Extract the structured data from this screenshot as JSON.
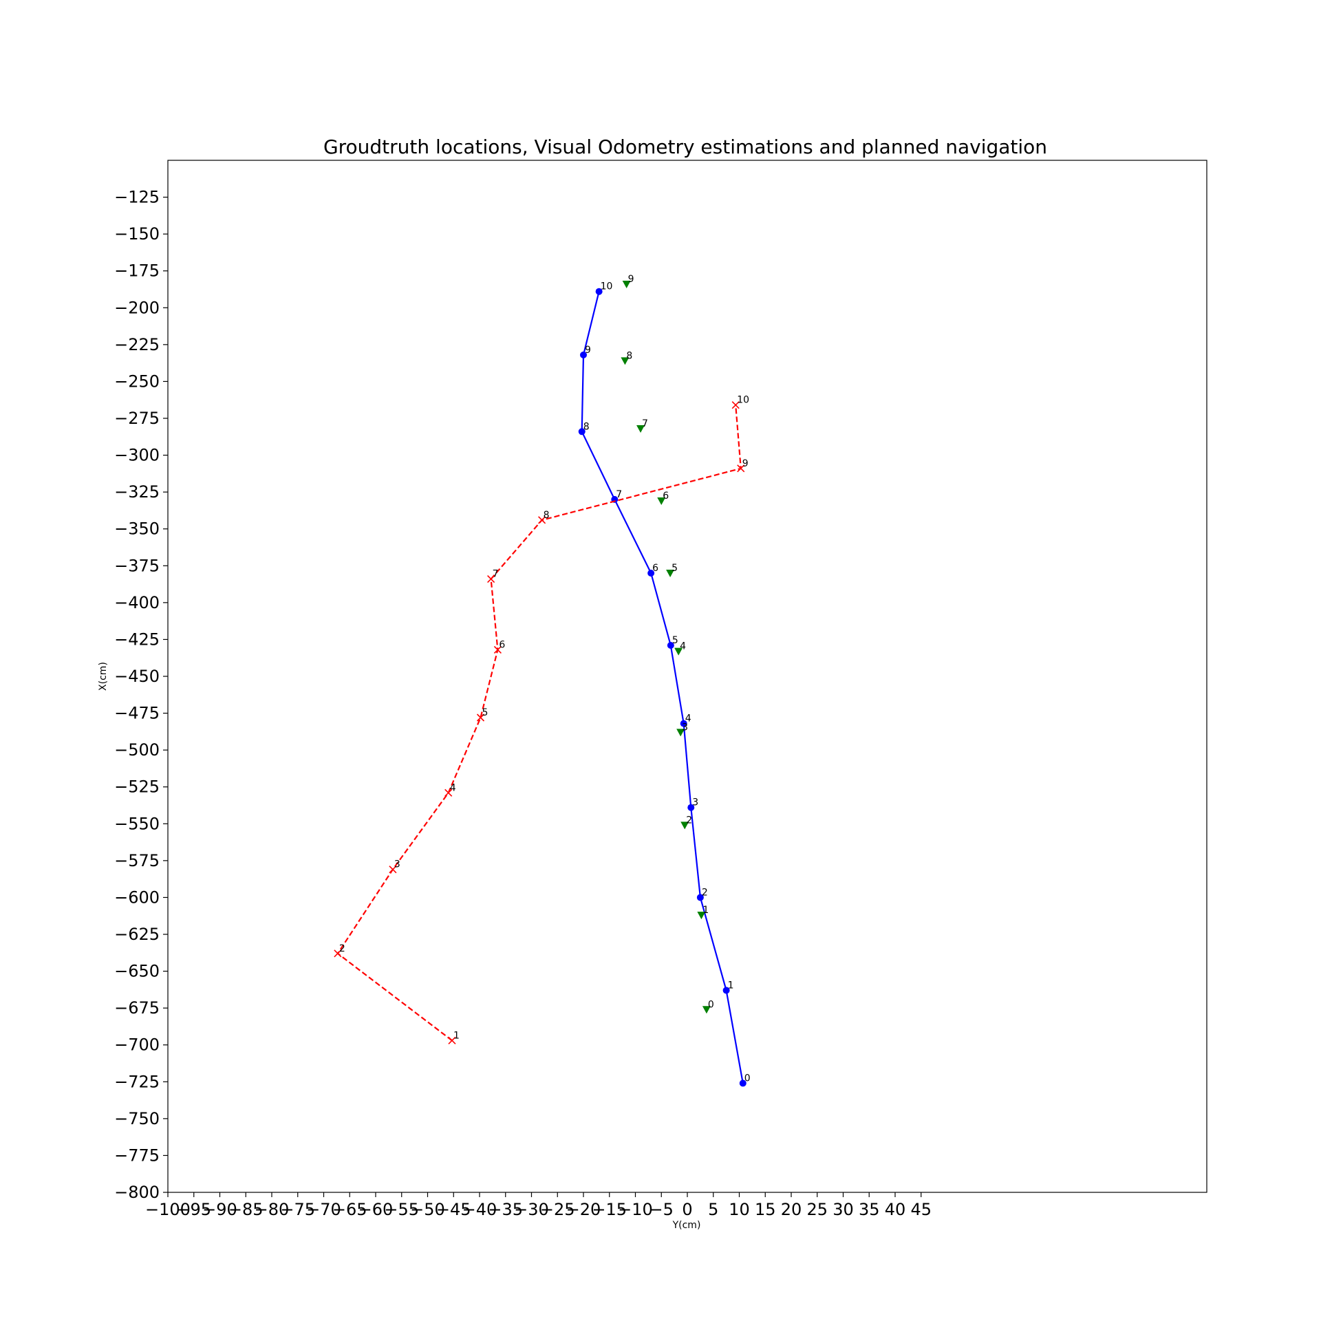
{
  "chart_data": {
    "type": "scatter",
    "title": "Groudtruth locations, Visual Odometry estimations and planned navigation",
    "xlabel": "Y(cm)",
    "ylabel": "X(cm)",
    "xlim": [
      -100,
      100
    ],
    "ylim": [
      -800,
      -100
    ],
    "grid": false,
    "x_ticks": [
      -100,
      -95,
      -90,
      -85,
      -80,
      -75,
      -70,
      -65,
      -60,
      -55,
      -50,
      -45,
      -40,
      -35,
      -30,
      -25,
      -20,
      -15,
      -10,
      -5,
      0,
      5,
      10,
      15,
      20,
      25,
      30,
      35,
      40,
      45
    ],
    "x_tick_labels": [
      "−100",
      "−95",
      "−90",
      "−85",
      "−80",
      "−75",
      "−70",
      "−65",
      "−60",
      "−55",
      "−50",
      "−45",
      "−40",
      "−35",
      "−30",
      "−25",
      "−20",
      "−15",
      "−10",
      "−5",
      "0",
      "5",
      "10",
      "15",
      "20",
      "25",
      "30",
      "35",
      "40",
      "45"
    ],
    "y_ticks": [
      -125,
      -150,
      -175,
      -200,
      -225,
      -250,
      -275,
      -300,
      -325,
      -350,
      -375,
      -400,
      -425,
      -450,
      -475,
      -500,
      -525,
      -550,
      -575,
      -600,
      -625,
      -650,
      -675,
      -700,
      -725,
      -750,
      -775,
      -800
    ],
    "y_tick_labels": [
      "−125",
      "−150",
      "−175",
      "−200",
      "−225",
      "−250",
      "−275",
      "−300",
      "−325",
      "−350",
      "−375",
      "−400",
      "−425",
      "−450",
      "−475",
      "−500",
      "−525",
      "−550",
      "−575",
      "−600",
      "−625",
      "−650",
      "−675",
      "−700",
      "−725",
      "−750",
      "−775",
      "−800"
    ],
    "series": [
      {
        "style": "solid-line-circle",
        "color": "#0000ff",
        "x": [
          10.7,
          7.5,
          2.5,
          0.7,
          -0.7,
          -3.2,
          -7.0,
          -14.0,
          -20.3,
          -20.0,
          -17.0
        ],
        "y": [
          -726,
          -663,
          -600,
          -539,
          -482,
          -429,
          -380,
          -330,
          -284,
          -232,
          -189
        ],
        "labels": [
          "0",
          "1",
          "2",
          "3",
          "4",
          "5",
          "6",
          "7",
          "8",
          "9",
          "10"
        ]
      },
      {
        "style": "dashed-line-x",
        "color": "#ff0000",
        "x": [
          -45.3,
          -67.3,
          -56.7,
          -46.0,
          -39.8,
          -36.5,
          -37.8,
          -28.0,
          10.3,
          9.3
        ],
        "y": [
          -697,
          -638,
          -581,
          -529,
          -478,
          -432,
          -384,
          -344,
          -309,
          -266
        ],
        "labels": [
          "1",
          "2",
          "3",
          "4",
          "5",
          "6",
          "7",
          "8",
          "9",
          "10"
        ]
      },
      {
        "style": "triangle-down",
        "color": "#008000",
        "x": [
          3.7,
          2.7,
          -0.5,
          -1.3,
          -1.7,
          -3.3,
          -5.0,
          -9.0,
          -12.0,
          -11.7
        ],
        "y": [
          -676,
          -612,
          -551,
          -488,
          -433,
          -380,
          -331,
          -282,
          -236,
          -184
        ],
        "labels": [
          "0",
          "1",
          "2",
          "3",
          "4",
          "5",
          "6",
          "7",
          "8",
          "9"
        ]
      }
    ]
  }
}
